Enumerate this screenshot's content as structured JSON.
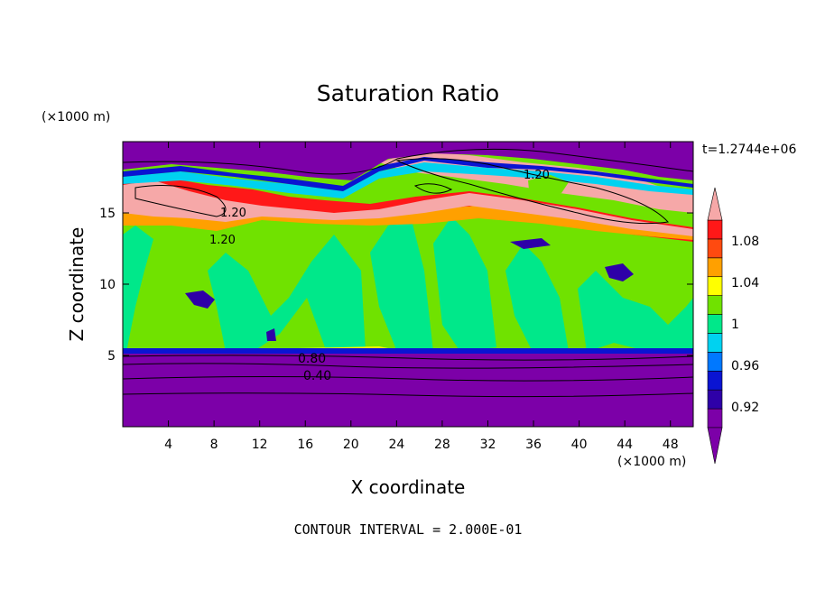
{
  "chart_data": {
    "type": "heatmap",
    "title": "Saturation Ratio",
    "xlabel": "X coordinate",
    "ylabel": "Z coordinate",
    "x_unit": "(×1000 m)",
    "y_unit": "(×1000 m)",
    "time_label": "t=1.2744e+06",
    "footer": "CONTOUR INTERVAL = 2.000E-01",
    "xlim": [
      0,
      50
    ],
    "ylim": [
      0,
      20
    ],
    "x_ticks": [
      4,
      8,
      12,
      16,
      20,
      24,
      28,
      32,
      36,
      40,
      44,
      48
    ],
    "y_ticks": [
      5,
      10,
      15
    ],
    "colorbar": {
      "levels": [
        0.9,
        0.92,
        0.94,
        0.96,
        0.98,
        1.0,
        1.02,
        1.04,
        1.06,
        1.08,
        1.1
      ],
      "tick_labels": [
        "0.92",
        "0.96",
        "1",
        "1.04",
        "1.08"
      ],
      "colors": [
        "#7c00a8",
        "#2e00a8",
        "#0a14d2",
        "#0078ff",
        "#00d2f0",
        "#00e88a",
        "#70e200",
        "#ffff00",
        "#ffa000",
        "#ff4a10",
        "#ff1818",
        "#f6a8a8"
      ]
    },
    "contour_labels": [
      "0.80",
      "0.40",
      "1.20",
      "1.20",
      "1.20"
    ],
    "colors": {
      "bottom_layer": "#7c00a8",
      "mid_layer": "#70e200",
      "mid_alt": "#00e88a",
      "supersaturated": "#f6a8a8"
    }
  }
}
